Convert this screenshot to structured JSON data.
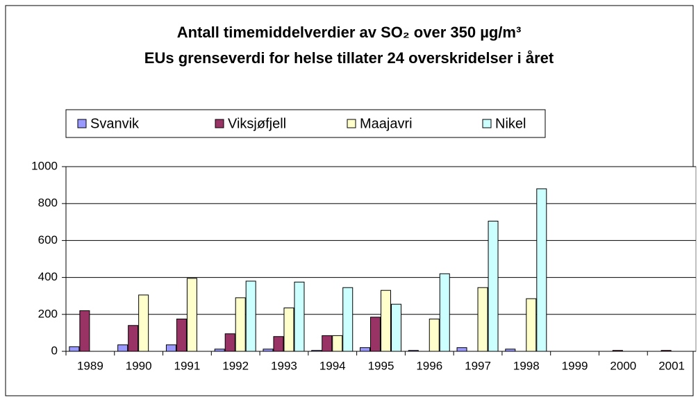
{
  "chart_data": {
    "type": "bar",
    "title": "Antall timemiddelverdier av SO₂ over 350 µg/m³",
    "subtitle": "EUs grenseverdi for helse tillater 24 overskridelser i året",
    "categories": [
      "1989",
      "1990",
      "1991",
      "1992",
      "1993",
      "1994",
      "1995",
      "1996",
      "1997",
      "1998",
      "1999",
      "2000",
      "2001"
    ],
    "series": [
      {
        "name": "Svanvik",
        "color": "#9999ff",
        "values": [
          25,
          35,
          35,
          12,
          12,
          5,
          20,
          5,
          20,
          12,
          null,
          null,
          null
        ]
      },
      {
        "name": "Viksjøfjell",
        "color": "#993366",
        "values": [
          220,
          140,
          175,
          95,
          80,
          85,
          185,
          null,
          null,
          null,
          null,
          5,
          5
        ]
      },
      {
        "name": "Maajavri",
        "color": "#ffffcc",
        "values": [
          null,
          305,
          395,
          290,
          235,
          85,
          330,
          175,
          345,
          285,
          null,
          null,
          null
        ]
      },
      {
        "name": "Nikel",
        "color": "#ccffff",
        "values": [
          null,
          null,
          null,
          380,
          375,
          345,
          255,
          420,
          705,
          880,
          null,
          null,
          null
        ]
      }
    ],
    "ylim": [
      0,
      1000
    ],
    "yticks": [
      0,
      200,
      400,
      600,
      800,
      1000
    ],
    "grid": true,
    "legend": "top"
  }
}
